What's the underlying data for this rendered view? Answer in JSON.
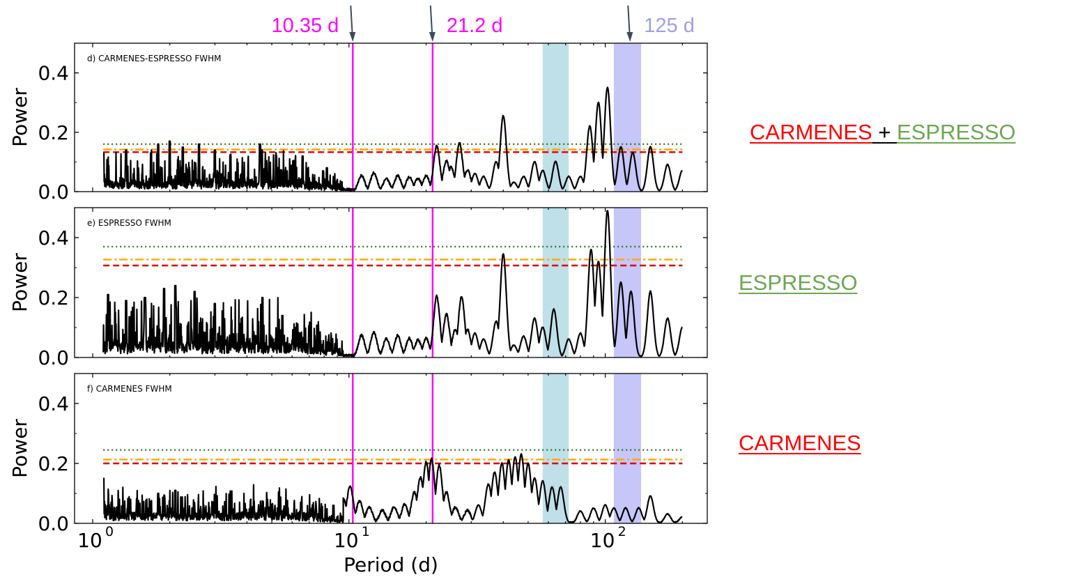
{
  "chart_data": {
    "type": "line",
    "xscale": "log",
    "xlim": [
      0.85,
      250
    ],
    "ylim": [
      0,
      0.5
    ],
    "xlabel": "Period (d)",
    "ylabel": "Power",
    "xticks": [
      1,
      10,
      100
    ],
    "xtick_labels": [
      {
        "base": "10",
        "exp": "0"
      },
      {
        "base": "10",
        "exp": "1"
      },
      {
        "base": "10",
        "exp": "2"
      }
    ],
    "yticks": [
      0.0,
      0.2,
      0.4
    ],
    "ytick_labels": [
      "0.0",
      "0.2",
      "0.4"
    ],
    "colors": {
      "periodogram": "#000000",
      "fap_dotted": "#2e7d1e",
      "fap_dashdot": "#ffa500",
      "fap_dashed": "#e00000",
      "period_lines": "#ff00ff",
      "band_cyan": "#a9d6e2",
      "band_blue": "#b3b3f7",
      "arrows": "#3d4a5a"
    },
    "vlines": [
      {
        "period": 10.35,
        "label": "10.35 d"
      },
      {
        "period": 21.2,
        "label": "21.2 d"
      }
    ],
    "top_annotations": [
      {
        "text": "10.35 d",
        "color": "#ff00ff"
      },
      {
        "text": "21.2 d",
        "color": "#ff00ff"
      },
      {
        "text": "125 d",
        "color": "#9f9fe6"
      }
    ],
    "arrow_periods": [
      10.35,
      21.2,
      125
    ],
    "bands": [
      {
        "from": 57,
        "to": 72,
        "color": "#a9d6e2"
      },
      {
        "from": 108,
        "to": 138,
        "color": "#b3b3f7"
      }
    ],
    "panels": [
      {
        "label": "d) CARMENES-ESPRESSO FWHM",
        "fap": {
          "dotted": 0.16,
          "dashdot": 0.142,
          "dashed": 0.133
        },
        "noise": {
          "level": 0.035,
          "amp": 0.07,
          "spikes": [
            [
              1.1,
              0.13
            ],
            [
              1.35,
              0.14
            ],
            [
              1.8,
              0.16
            ],
            [
              2.0,
              0.17
            ],
            [
              2.25,
              0.15
            ],
            [
              2.6,
              0.16
            ],
            [
              3.0,
              0.14
            ],
            [
              4.5,
              0.16
            ],
            [
              5.2,
              0.12
            ],
            [
              6.6,
              0.12
            ],
            [
              8.2,
              0.08
            ]
          ]
        },
        "peaks": [
          [
            11.2,
            0.05
          ],
          [
            12.5,
            0.06
          ],
          [
            14.0,
            0.04
          ],
          [
            15.5,
            0.05
          ],
          [
            17.2,
            0.045
          ],
          [
            18.6,
            0.04
          ],
          [
            20.0,
            0.05
          ],
          [
            22.0,
            0.15
          ],
          [
            24.0,
            0.1
          ],
          [
            25.0,
            0.08
          ],
          [
            27.0,
            0.16
          ],
          [
            29.0,
            0.07
          ],
          [
            31.0,
            0.06
          ],
          [
            33.5,
            0.05
          ],
          [
            37.5,
            0.1
          ],
          [
            40.0,
            0.255
          ],
          [
            44.0,
            0.03
          ],
          [
            48.0,
            0.05
          ],
          [
            53.0,
            0.1
          ],
          [
            57.0,
            0.07
          ],
          [
            64.0,
            0.1
          ],
          [
            72.0,
            0.05
          ],
          [
            80.0,
            0.05
          ],
          [
            87.0,
            0.22
          ],
          [
            94.0,
            0.3
          ],
          [
            102.0,
            0.35
          ],
          [
            115.0,
            0.15
          ],
          [
            128.0,
            0.13
          ],
          [
            150.0,
            0.15
          ],
          [
            175.0,
            0.09
          ],
          [
            200.0,
            0.07
          ]
        ]
      },
      {
        "label": "e) ESPRESSO FWHM",
        "fap": {
          "dotted": 0.37,
          "dashdot": 0.327,
          "dashed": 0.307
        },
        "noise": {
          "level": 0.05,
          "amp": 0.1,
          "spikes": [
            [
              1.15,
              0.21
            ],
            [
              1.35,
              0.19
            ],
            [
              1.6,
              0.2
            ],
            [
              1.9,
              0.23
            ],
            [
              2.1,
              0.24
            ],
            [
              2.5,
              0.22
            ],
            [
              3.0,
              0.18
            ],
            [
              4.6,
              0.2
            ],
            [
              5.5,
              0.14
            ],
            [
              7.0,
              0.1
            ]
          ]
        },
        "peaks": [
          [
            11.2,
            0.07
          ],
          [
            12.5,
            0.08
          ],
          [
            14.0,
            0.06
          ],
          [
            15.5,
            0.07
          ],
          [
            17.2,
            0.06
          ],
          [
            18.6,
            0.055
          ],
          [
            20.0,
            0.06
          ],
          [
            22.0,
            0.2
          ],
          [
            24.0,
            0.14
          ],
          [
            26.0,
            0.09
          ],
          [
            27.5,
            0.2
          ],
          [
            29.0,
            0.09
          ],
          [
            31.0,
            0.08
          ],
          [
            33.5,
            0.06
          ],
          [
            37.5,
            0.12
          ],
          [
            40.0,
            0.345
          ],
          [
            44.0,
            0.04
          ],
          [
            48.0,
            0.07
          ],
          [
            53.0,
            0.13
          ],
          [
            57.0,
            0.1
          ],
          [
            63.0,
            0.16
          ],
          [
            72.0,
            0.06
          ],
          [
            80.0,
            0.08
          ],
          [
            88.0,
            0.36
          ],
          [
            94.0,
            0.32
          ],
          [
            102.0,
            0.49
          ],
          [
            115.0,
            0.25
          ],
          [
            126.0,
            0.22
          ],
          [
            150.0,
            0.22
          ],
          [
            175.0,
            0.13
          ],
          [
            200.0,
            0.1
          ]
        ]
      },
      {
        "label": "f) CARMENES FWHM",
        "fap": {
          "dotted": 0.245,
          "dashdot": 0.213,
          "dashed": 0.2
        },
        "noise": {
          "level": 0.035,
          "amp": 0.06,
          "spikes": [
            [
              1.1,
              0.15
            ],
            [
              1.4,
              0.08
            ],
            [
              1.8,
              0.1
            ],
            [
              2.1,
              0.11
            ],
            [
              3.0,
              0.09
            ],
            [
              4.8,
              0.08
            ],
            [
              6.5,
              0.07
            ],
            [
              8.7,
              0.06
            ]
          ]
        },
        "peaks": [
          [
            9.5,
            0.08
          ],
          [
            10.1,
            0.12
          ],
          [
            11.0,
            0.07
          ],
          [
            12.0,
            0.05
          ],
          [
            13.5,
            0.04
          ],
          [
            15.0,
            0.05
          ],
          [
            16.5,
            0.06
          ],
          [
            18.0,
            0.1
          ],
          [
            19.0,
            0.15
          ],
          [
            20.0,
            0.2
          ],
          [
            21.0,
            0.21
          ],
          [
            22.5,
            0.19
          ],
          [
            24.0,
            0.1
          ],
          [
            26.0,
            0.05
          ],
          [
            29.0,
            0.04
          ],
          [
            32.0,
            0.06
          ],
          [
            35.0,
            0.13
          ],
          [
            37.0,
            0.17
          ],
          [
            39.5,
            0.2
          ],
          [
            42.0,
            0.21
          ],
          [
            44.5,
            0.22
          ],
          [
            47.0,
            0.23
          ],
          [
            50.0,
            0.2
          ],
          [
            53.0,
            0.15
          ],
          [
            57.0,
            0.14
          ],
          [
            62.0,
            0.12
          ],
          [
            67.0,
            0.12
          ],
          [
            80.0,
            0.04
          ],
          [
            90.0,
            0.05
          ],
          [
            100.0,
            0.06
          ],
          [
            108.0,
            0.05
          ],
          [
            120.0,
            0.05
          ],
          [
            135.0,
            0.05
          ],
          [
            150.0,
            0.09
          ],
          [
            175.0,
            0.03
          ],
          [
            200.0,
            0.02
          ]
        ]
      }
    ]
  },
  "side_labels": {
    "panel_d": {
      "carmenes": "CARMENES",
      "plus": " + ",
      "espresso": "ESPRESSO"
    },
    "panel_e": {
      "espresso": "ESPRESSO"
    },
    "panel_f": {
      "carmenes": "CARMENES"
    },
    "colors": {
      "carmenes": "#ff0000",
      "espresso": "#6aa84f",
      "plus": "#000000"
    }
  }
}
